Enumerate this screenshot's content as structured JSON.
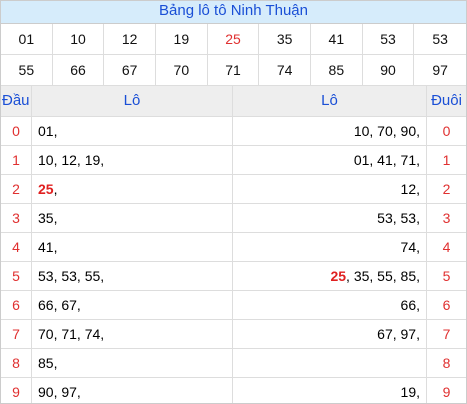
{
  "title": "Bảng lô tô Ninh Thuận",
  "numbers": [
    [
      {
        "text": "01"
      },
      {
        "text": "10"
      },
      {
        "text": "12"
      },
      {
        "text": "19"
      },
      {
        "text": "25",
        "special": true
      },
      {
        "text": "35"
      },
      {
        "text": "41"
      },
      {
        "text": "53"
      },
      {
        "text": "53"
      }
    ],
    [
      {
        "text": "55"
      },
      {
        "text": "66"
      },
      {
        "text": "67"
      },
      {
        "text": "70"
      },
      {
        "text": "71"
      },
      {
        "text": "74"
      },
      {
        "text": "85"
      },
      {
        "text": "90"
      },
      {
        "text": "97"
      }
    ]
  ],
  "table": {
    "headers": [
      "Đầu",
      "Lô",
      "Lô",
      "Đuôi"
    ],
    "rows": [
      {
        "head": "0",
        "left": [
          {
            "text": "01,"
          }
        ],
        "right": [
          {
            "text": "10, 70, 90,"
          }
        ],
        "tail": "0"
      },
      {
        "head": "1",
        "left": [
          {
            "text": "10, 12, 19,"
          }
        ],
        "right": [
          {
            "text": "01, 41, 71,"
          }
        ],
        "tail": "1"
      },
      {
        "head": "2",
        "left": [
          {
            "text": "25",
            "special": true
          },
          {
            "text": ","
          }
        ],
        "right": [
          {
            "text": "12,"
          }
        ],
        "tail": "2"
      },
      {
        "head": "3",
        "left": [
          {
            "text": "35,"
          }
        ],
        "right": [
          {
            "text": "53, 53,"
          }
        ],
        "tail": "3"
      },
      {
        "head": "4",
        "left": [
          {
            "text": "41,"
          }
        ],
        "right": [
          {
            "text": "74,"
          }
        ],
        "tail": "4"
      },
      {
        "head": "5",
        "left": [
          {
            "text": "53, 53, 55,"
          }
        ],
        "right": [
          {
            "text": "25",
            "special": true
          },
          {
            "text": ", 35, 55, 85,"
          }
        ],
        "tail": "5"
      },
      {
        "head": "6",
        "left": [
          {
            "text": "66, 67,"
          }
        ],
        "right": [
          {
            "text": "66,"
          }
        ],
        "tail": "6"
      },
      {
        "head": "7",
        "left": [
          {
            "text": "70, 71, 74,"
          }
        ],
        "right": [
          {
            "text": "67, 97,"
          }
        ],
        "tail": "7"
      },
      {
        "head": "8",
        "left": [
          {
            "text": "85,"
          }
        ],
        "right": [],
        "tail": "8"
      },
      {
        "head": "9",
        "left": [
          {
            "text": "90, 97,"
          }
        ],
        "right": [
          {
            "text": "19,"
          }
        ],
        "tail": "9"
      }
    ]
  }
}
